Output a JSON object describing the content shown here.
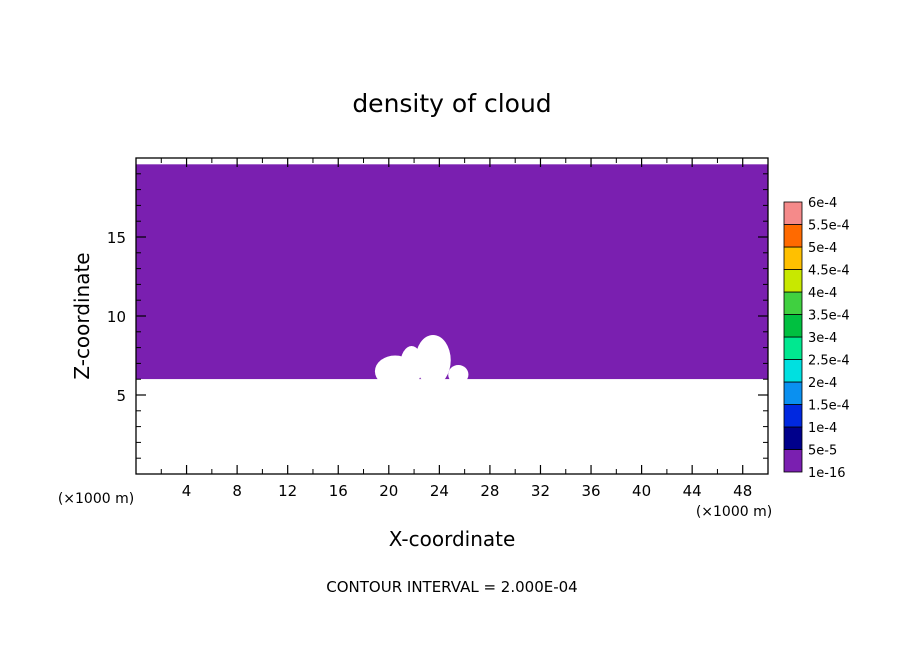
{
  "chart_data": {
    "type": "heatmap",
    "title": "density of cloud",
    "xlabel": "X-coordinate",
    "ylabel": "Z-coordinate",
    "x_unit": "(×1000 m)",
    "y_unit": "(×1000 m)",
    "xlim": [
      0,
      50
    ],
    "ylim": [
      0,
      20
    ],
    "x_ticks": [
      4,
      8,
      12,
      16,
      20,
      24,
      28,
      32,
      36,
      40,
      44,
      48
    ],
    "y_ticks": [
      5,
      10,
      15
    ],
    "grid": false,
    "legend": {
      "placement": "right",
      "levels": [
        {
          "label": "1e-16",
          "color": "#7a1fb0"
        },
        {
          "label": "5e-5",
          "color": "#00008b"
        },
        {
          "label": "1e-4",
          "color": "#0028e0"
        },
        {
          "label": "1.5e-4",
          "color": "#0a90f0"
        },
        {
          "label": "2e-4",
          "color": "#00e0e0"
        },
        {
          "label": "2.5e-4",
          "color": "#00e890"
        },
        {
          "label": "3e-4",
          "color": "#00c040"
        },
        {
          "label": "3.5e-4",
          "color": "#40d040"
        },
        {
          "label": "4e-4",
          "color": "#c8e800"
        },
        {
          "label": "4.5e-4",
          "color": "#ffc000"
        },
        {
          "label": "5e-4",
          "color": "#ff6a00"
        },
        {
          "label": "5.5e-4",
          "color": "#ff2a10"
        },
        {
          "label": "6e-4",
          "color": "#f58a8a"
        }
      ]
    },
    "cloud_region": {
      "z_base": 6,
      "z_top": 19.6
    }
  },
  "footer": "CONTOUR INTERVAL = 2.000E-04"
}
